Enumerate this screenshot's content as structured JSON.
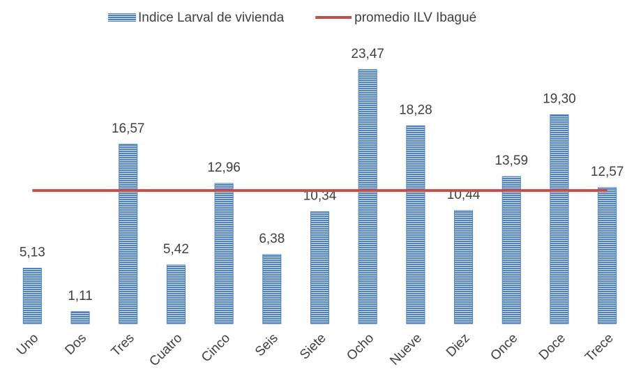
{
  "chart_data": {
    "type": "bar",
    "categories": [
      "Uno",
      "Dos",
      "Tres",
      "Cuatro",
      "Cinco",
      "Seis",
      "Siete",
      "Ocho",
      "Nueve",
      "Diez",
      "Once",
      "Doce",
      "Trece"
    ],
    "series": [
      {
        "name": "Indice Larval de vivienda",
        "type": "bar",
        "color": "#4f81bd",
        "values": [
          5.13,
          1.11,
          16.57,
          5.42,
          12.96,
          6.38,
          10.34,
          23.47,
          18.28,
          10.44,
          13.59,
          19.3,
          12.57
        ],
        "value_labels": [
          "5,13",
          "1,11",
          "16,57",
          "5,42",
          "12,96",
          "6,38",
          "10,34",
          "23,47",
          "18,28",
          "10,44",
          "13,59",
          "19,30",
          "12,57"
        ]
      },
      {
        "name": "promedio ILV Ibagué",
        "type": "line",
        "color": "#c0504d",
        "values": [
          12.3,
          12.3,
          12.3,
          12.3,
          12.3,
          12.3,
          12.3,
          12.3,
          12.3,
          12.3,
          12.3,
          12.3,
          12.3
        ]
      }
    ],
    "ylim": [
      0,
      25
    ],
    "legend": "top"
  }
}
